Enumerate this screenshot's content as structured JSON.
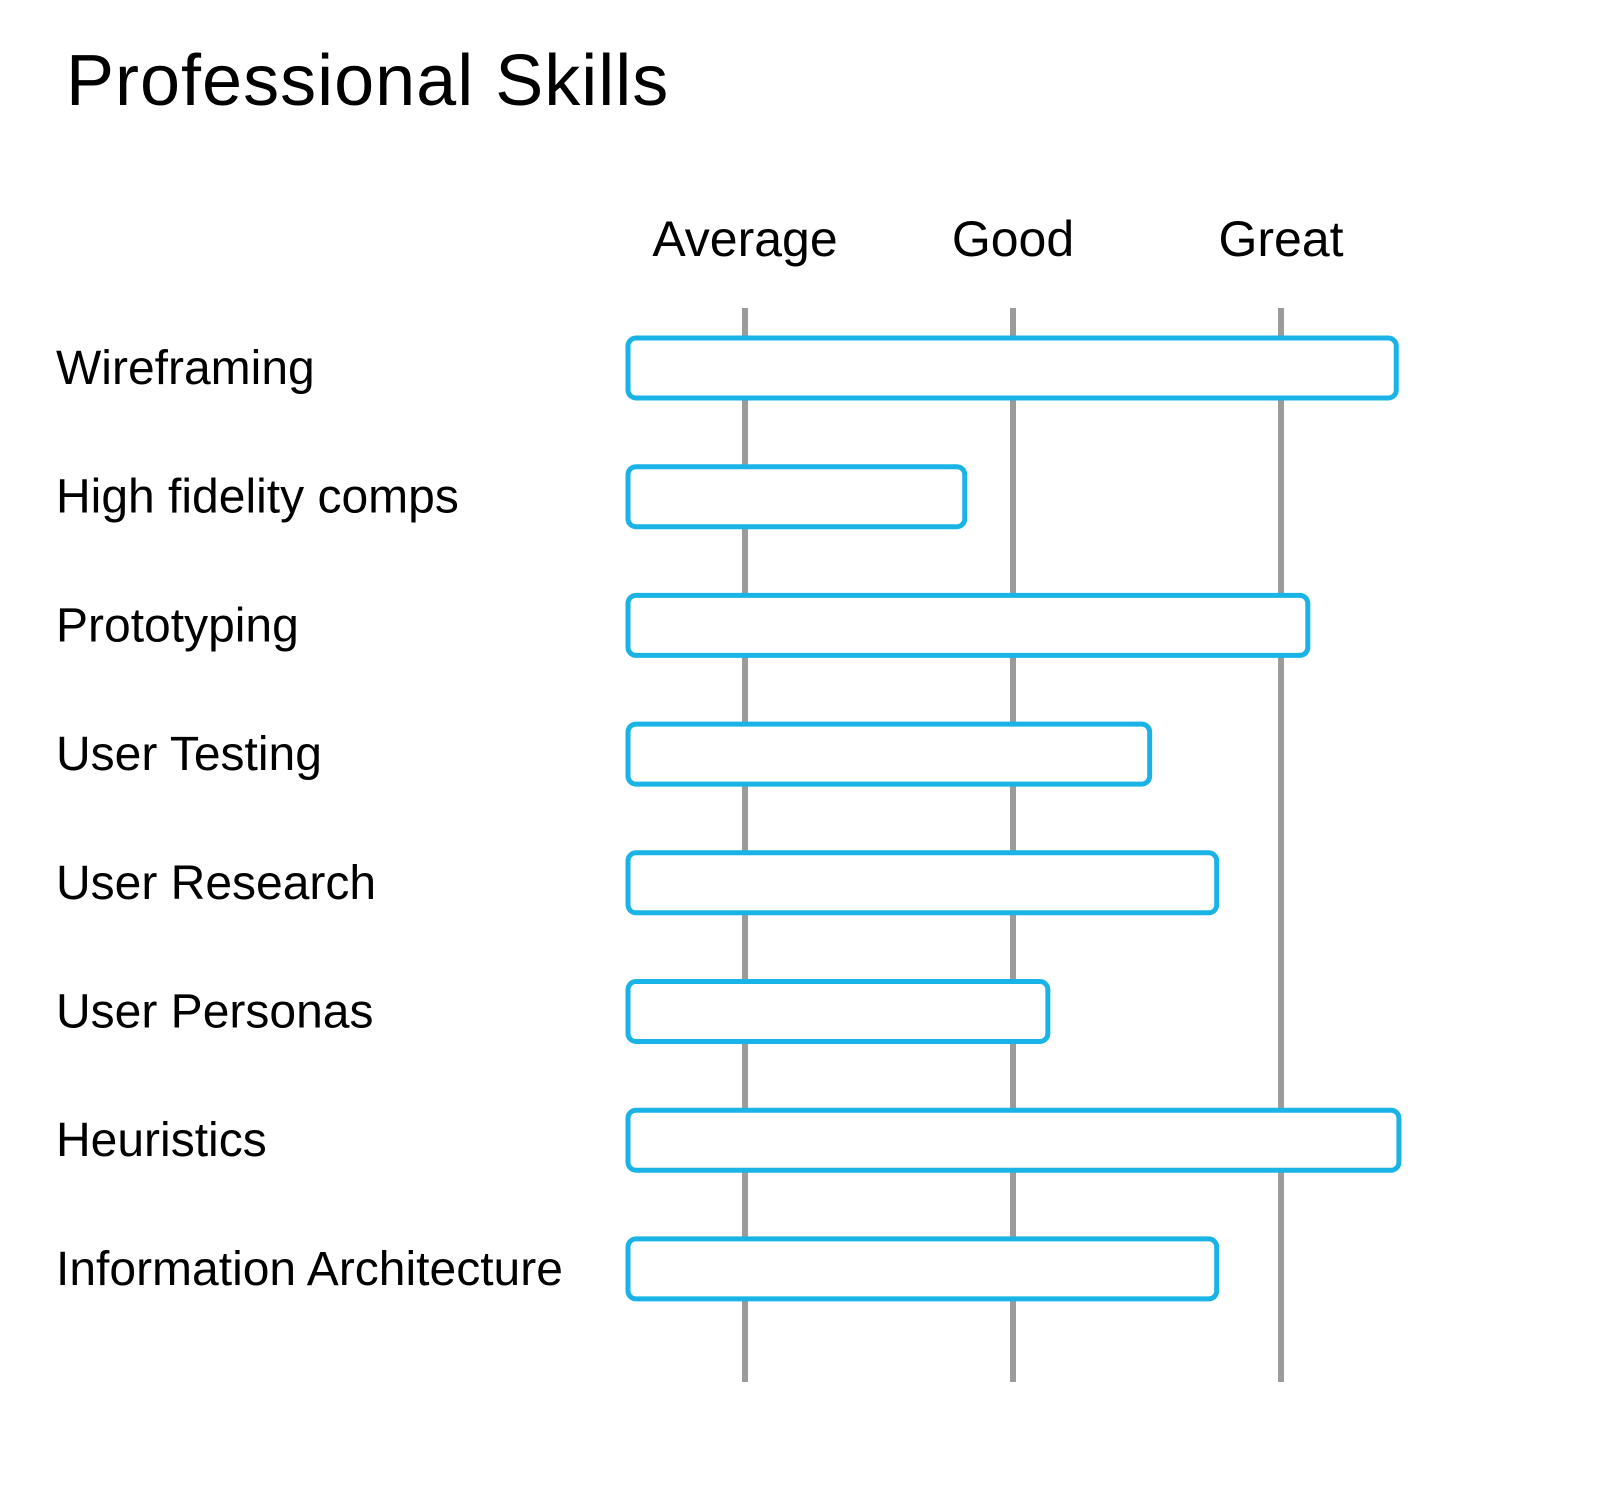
{
  "chart_data": {
    "type": "bar",
    "orientation": "horizontal",
    "title": "Professional Skills",
    "levels": [
      "Average",
      "Good",
      "Great"
    ],
    "categories": [
      "Wireframing",
      "High fidelity comps",
      "Prototyping",
      "User Testing",
      "User Research",
      "User Personas",
      "Heuristics",
      "Information Architecture"
    ],
    "values": [
      2.43,
      0.82,
      2.1,
      1.51,
      1.76,
      1.13,
      2.44,
      1.76
    ],
    "xlim": [
      -0.44,
      2.44
    ],
    "grid": true,
    "colors": {
      "bar_stroke": "#1ab3e6",
      "bar_fill": "#ffffff",
      "gridline": "#9b9b9b"
    }
  }
}
